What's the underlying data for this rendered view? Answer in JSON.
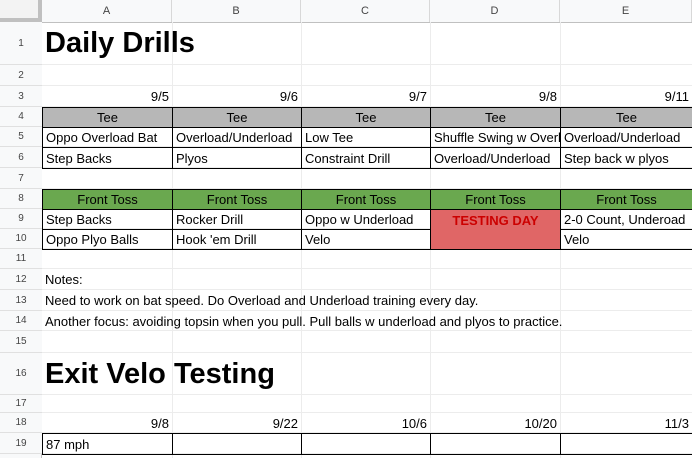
{
  "columns": [
    "A",
    "B",
    "C",
    "D",
    "E"
  ],
  "rows": [
    "1",
    "2",
    "3",
    "4",
    "5",
    "6",
    "7",
    "8",
    "9",
    "10",
    "11",
    "12",
    "13",
    "14",
    "15",
    "16",
    "17",
    "18",
    "19"
  ],
  "daily_drills": {
    "title": "Daily Drills",
    "dates": [
      "9/5",
      "9/6",
      "9/7",
      "9/8",
      "9/11"
    ],
    "tee_header": [
      "Tee",
      "Tee",
      "Tee",
      "Tee",
      "Tee"
    ],
    "tee_row1": [
      "Oppo Overload Bat",
      "Overload/Underload",
      "Low Tee",
      "Shuffle Swing w Overl",
      "Overload/Underload"
    ],
    "tee_row2": [
      "Step Backs",
      "Plyos",
      "Constraint Drill",
      "Overload/Underload",
      "Step back w plyos"
    ],
    "toss_header": [
      "Front Toss",
      "Front Toss",
      "Front Toss",
      "Front Toss",
      "Front Toss"
    ],
    "toss_row1": [
      "Step Backs",
      "Rocker Drill",
      "Oppo w Underload",
      "TESTING DAY",
      "2-0 Count, Underoad"
    ],
    "toss_row2": [
      "Oppo Plyo Balls",
      "Hook 'em Drill",
      "Velo",
      "",
      "Velo"
    ]
  },
  "notes": {
    "label": "Notes:",
    "line1": "Need to work on bat speed. Do Overload and Underload training every day.",
    "line2": "Another focus: avoiding topsin when you pull. Pull balls w underload and plyos to practice."
  },
  "exit_velo": {
    "title": "Exit Velo Testing",
    "dates": [
      "9/8",
      "9/22",
      "10/6",
      "10/20",
      "11/3"
    ],
    "values": [
      "87 mph",
      "",
      "",
      "",
      ""
    ]
  },
  "colors": {
    "tee_header_bg": "#b7b7b7",
    "toss_header_bg": "#6aa84f",
    "testing_day_bg": "#e06666",
    "testing_day_text": "#cc0000"
  }
}
